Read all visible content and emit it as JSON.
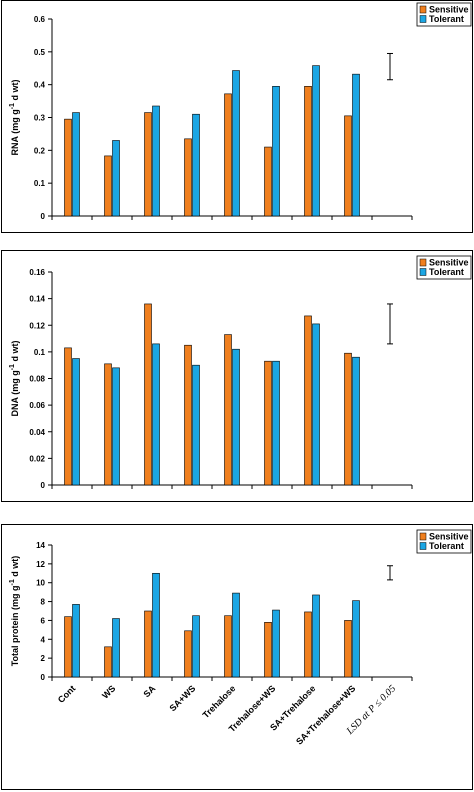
{
  "colors": {
    "sensitive": "#f07f1e",
    "tolerant": "#1ba6e4"
  },
  "legend": [
    "Sensitive",
    "Tolerant"
  ],
  "categories": [
    "Cont",
    "WS",
    "SA",
    "SA+WS",
    "Trehalose",
    "Trehalose+WS",
    "SA+Trehalose",
    "SA+Trehalose+WS",
    "LSD at P ≤ 0.05"
  ],
  "chart_data": [
    {
      "type": "bar",
      "ylabel_main": "RNA  (mg g",
      "ylabel_sup": "-1",
      "ylabel_end": " d wt)",
      "ylim": [
        0,
        0.6
      ],
      "yticks": [
        "0",
        "0.1",
        "0.2",
        "0.3",
        "0.4",
        "0.5",
        "0.6"
      ],
      "series": [
        {
          "name": "Sensitive",
          "values": [
            0.295,
            0.183,
            0.315,
            0.235,
            0.372,
            0.21,
            0.395,
            0.305
          ]
        },
        {
          "name": "Tolerant",
          "values": [
            0.315,
            0.23,
            0.335,
            0.31,
            0.443,
            0.395,
            0.458,
            0.432
          ]
        }
      ],
      "lsd": [
        0.415,
        0.495
      ]
    },
    {
      "type": "bar",
      "ylabel_main": "DNA  (mg g",
      "ylabel_sup": "-1",
      "ylabel_end": " d wt)",
      "ylim": [
        0,
        0.16
      ],
      "yticks": [
        "0",
        "0.02",
        "0.04",
        "0.06",
        "0.08",
        "0.1",
        "0.12",
        "0.14",
        "0.16"
      ],
      "series": [
        {
          "name": "Sensitive",
          "values": [
            0.103,
            0.091,
            0.136,
            0.105,
            0.113,
            0.093,
            0.127,
            0.099
          ]
        },
        {
          "name": "Tolerant",
          "values": [
            0.095,
            0.088,
            0.106,
            0.09,
            0.102,
            0.093,
            0.121,
            0.096
          ]
        }
      ],
      "lsd": [
        0.106,
        0.136
      ]
    },
    {
      "type": "bar",
      "ylabel_main": "Total protein  (mg g",
      "ylabel_sup": "-1",
      "ylabel_end": " d wt)",
      "ylim": [
        0,
        14
      ],
      "yticks": [
        "0",
        "2",
        "4",
        "6",
        "8",
        "10",
        "12",
        "14"
      ],
      "series": [
        {
          "name": "Sensitive",
          "values": [
            6.4,
            3.2,
            7.0,
            4.9,
            6.5,
            5.8,
            6.9,
            6.0
          ]
        },
        {
          "name": "Tolerant",
          "values": [
            7.7,
            6.2,
            11.0,
            6.5,
            8.9,
            7.1,
            8.7,
            8.1
          ]
        }
      ],
      "lsd": [
        10.3,
        11.8
      ]
    }
  ]
}
